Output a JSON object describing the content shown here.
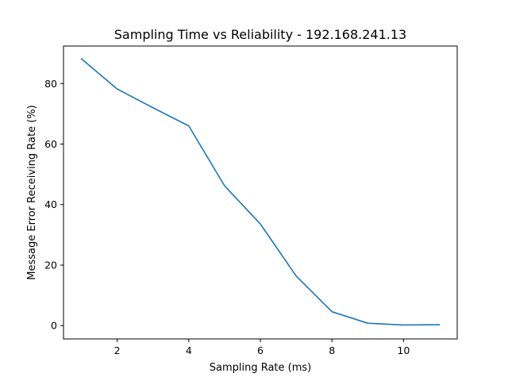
{
  "chart_data": {
    "type": "line",
    "title": "Sampling Time vs Reliability - 192.168.241.13",
    "xlabel": "Sampling Rate (ms)",
    "ylabel": "Message Error Receiving Rate (%)",
    "xlim": [
      0.5,
      11.5
    ],
    "ylim": [
      -4.4,
      92.4
    ],
    "xticks": [
      2,
      4,
      6,
      8,
      10
    ],
    "yticks": [
      0,
      20,
      40,
      60,
      80
    ],
    "grid": false,
    "series": [
      {
        "color": "#1f77b4",
        "x": [
          1,
          2,
          3,
          4,
          5,
          6,
          7,
          8,
          9,
          10,
          11
        ],
        "y": [
          88.2,
          78.2,
          72.0,
          66.0,
          46.2,
          33.6,
          16.4,
          4.6,
          0.8,
          0.2,
          0.3
        ]
      }
    ]
  }
}
